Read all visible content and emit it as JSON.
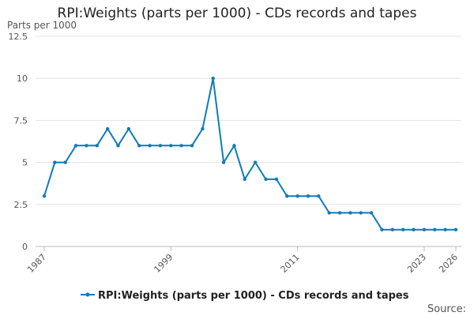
{
  "chart_data": {
    "type": "line",
    "title": "RPI:Weights (parts per 1000) - CDs records and tapes",
    "ylabel": "Parts per 1000",
    "xlabel": "",
    "ylim": [
      0,
      12.5
    ],
    "xlim": [
      1987,
      2026
    ],
    "y_ticks": [
      "0",
      "2.5",
      "5",
      "7.5",
      "10",
      "12.5"
    ],
    "y_tick_values": [
      0,
      2.5,
      5,
      7.5,
      10,
      12.5
    ],
    "x_ticks": [
      "1987",
      "1999",
      "2011",
      "2023",
      "2026"
    ],
    "x_tick_values": [
      1987,
      1999,
      2011,
      2023,
      2026
    ],
    "grid": "horizontal",
    "legend_position": "bottom",
    "series": [
      {
        "name": "RPI:Weights (parts per 1000) - CDs records and tapes",
        "color": "#0f7bb8",
        "x": [
          1987,
          1988,
          1989,
          1990,
          1991,
          1992,
          1993,
          1994,
          1995,
          1996,
          1997,
          1998,
          1999,
          2000,
          2001,
          2002,
          2003,
          2004,
          2005,
          2006,
          2007,
          2008,
          2009,
          2010,
          2011,
          2012,
          2013,
          2014,
          2015,
          2016,
          2017,
          2018,
          2019,
          2020,
          2021,
          2022,
          2023,
          2024,
          2025,
          2026
        ],
        "values": [
          3,
          5,
          5,
          6,
          6,
          6,
          7,
          6,
          7,
          6,
          6,
          6,
          6,
          6,
          6,
          7,
          10,
          5,
          6,
          4,
          5,
          4,
          4,
          3,
          3,
          3,
          3,
          2,
          2,
          2,
          2,
          2,
          1,
          1,
          1,
          1,
          1,
          1,
          1,
          1
        ]
      }
    ]
  },
  "source_label": "Source:"
}
